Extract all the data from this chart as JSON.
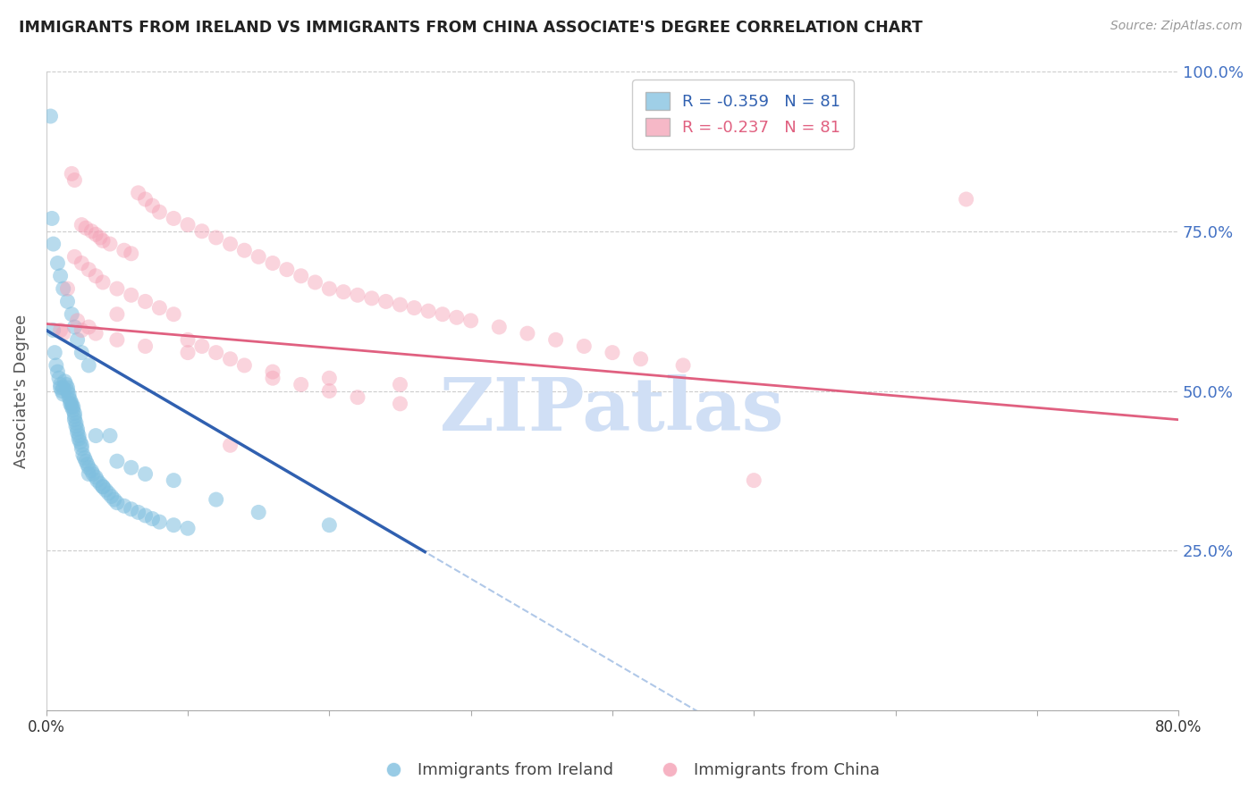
{
  "title": "IMMIGRANTS FROM IRELAND VS IMMIGRANTS FROM CHINA ASSOCIATE'S DEGREE CORRELATION CHART",
  "source": "Source: ZipAtlas.com",
  "ylabel": "Associate's Degree",
  "legend_label_blue": "Immigrants from Ireland",
  "legend_label_pink": "Immigrants from China",
  "R_blue": -0.359,
  "N_blue": 81,
  "R_pink": -0.237,
  "N_pink": 81,
  "xlim": [
    0.0,
    0.8
  ],
  "ylim": [
    0.0,
    1.0
  ],
  "color_blue": "#7fbfdf",
  "color_pink": "#f4a0b5",
  "color_blue_line": "#3060b0",
  "color_pink_line": "#e06080",
  "color_dashed": "#b0c8e8",
  "color_right_labels": "#4472c4",
  "watermark_text": "ZIPatlas",
  "watermark_color": "#d0dff5",
  "blue_line_x0": 0.0,
  "blue_line_y0": 0.595,
  "blue_line_x1": 0.27,
  "blue_line_y1": 0.245,
  "pink_line_x0": 0.0,
  "pink_line_y0": 0.605,
  "pink_line_x1": 0.8,
  "pink_line_y1": 0.455,
  "blue_scatter_x": [
    0.003,
    0.005,
    0.006,
    0.007,
    0.008,
    0.009,
    0.01,
    0.01,
    0.011,
    0.012,
    0.012,
    0.013,
    0.014,
    0.015,
    0.015,
    0.016,
    0.016,
    0.017,
    0.017,
    0.018,
    0.018,
    0.019,
    0.019,
    0.02,
    0.02,
    0.02,
    0.021,
    0.021,
    0.022,
    0.022,
    0.023,
    0.023,
    0.024,
    0.025,
    0.025,
    0.026,
    0.027,
    0.028,
    0.029,
    0.03,
    0.03,
    0.032,
    0.033,
    0.035,
    0.036,
    0.038,
    0.04,
    0.042,
    0.044,
    0.046,
    0.048,
    0.05,
    0.055,
    0.06,
    0.065,
    0.07,
    0.075,
    0.08,
    0.09,
    0.1,
    0.004,
    0.005,
    0.008,
    0.01,
    0.012,
    0.015,
    0.018,
    0.02,
    0.022,
    0.025,
    0.03,
    0.035,
    0.04,
    0.045,
    0.05,
    0.06,
    0.07,
    0.09,
    0.12,
    0.15,
    0.2
  ],
  "blue_scatter_y": [
    0.93,
    0.595,
    0.56,
    0.54,
    0.53,
    0.52,
    0.51,
    0.505,
    0.5,
    0.495,
    0.505,
    0.515,
    0.51,
    0.505,
    0.5,
    0.495,
    0.49,
    0.485,
    0.48,
    0.475,
    0.48,
    0.475,
    0.47,
    0.465,
    0.46,
    0.455,
    0.45,
    0.445,
    0.44,
    0.435,
    0.43,
    0.425,
    0.42,
    0.415,
    0.41,
    0.4,
    0.395,
    0.39,
    0.385,
    0.38,
    0.37,
    0.375,
    0.37,
    0.365,
    0.36,
    0.355,
    0.35,
    0.345,
    0.34,
    0.335,
    0.33,
    0.325,
    0.32,
    0.315,
    0.31,
    0.305,
    0.3,
    0.295,
    0.29,
    0.285,
    0.77,
    0.73,
    0.7,
    0.68,
    0.66,
    0.64,
    0.62,
    0.6,
    0.58,
    0.56,
    0.54,
    0.43,
    0.35,
    0.43,
    0.39,
    0.38,
    0.37,
    0.36,
    0.33,
    0.31,
    0.29
  ],
  "pink_scatter_x": [
    0.01,
    0.012,
    0.015,
    0.018,
    0.02,
    0.022,
    0.025,
    0.028,
    0.03,
    0.032,
    0.035,
    0.038,
    0.04,
    0.045,
    0.05,
    0.055,
    0.06,
    0.065,
    0.07,
    0.075,
    0.08,
    0.09,
    0.1,
    0.11,
    0.12,
    0.13,
    0.14,
    0.15,
    0.16,
    0.17,
    0.18,
    0.19,
    0.2,
    0.21,
    0.22,
    0.23,
    0.24,
    0.25,
    0.26,
    0.27,
    0.28,
    0.29,
    0.3,
    0.32,
    0.34,
    0.36,
    0.38,
    0.4,
    0.42,
    0.45,
    0.02,
    0.025,
    0.03,
    0.035,
    0.04,
    0.05,
    0.06,
    0.07,
    0.08,
    0.09,
    0.1,
    0.11,
    0.12,
    0.13,
    0.14,
    0.16,
    0.18,
    0.2,
    0.22,
    0.25,
    0.025,
    0.035,
    0.05,
    0.07,
    0.1,
    0.13,
    0.16,
    0.2,
    0.25,
    0.5,
    0.65
  ],
  "pink_scatter_y": [
    0.595,
    0.59,
    0.66,
    0.84,
    0.83,
    0.61,
    0.76,
    0.755,
    0.6,
    0.75,
    0.745,
    0.74,
    0.735,
    0.73,
    0.62,
    0.72,
    0.715,
    0.81,
    0.8,
    0.79,
    0.78,
    0.77,
    0.76,
    0.75,
    0.74,
    0.73,
    0.72,
    0.71,
    0.7,
    0.69,
    0.68,
    0.67,
    0.66,
    0.655,
    0.65,
    0.645,
    0.64,
    0.635,
    0.63,
    0.625,
    0.62,
    0.615,
    0.61,
    0.6,
    0.59,
    0.58,
    0.57,
    0.56,
    0.55,
    0.54,
    0.71,
    0.7,
    0.69,
    0.68,
    0.67,
    0.66,
    0.65,
    0.64,
    0.63,
    0.62,
    0.58,
    0.57,
    0.56,
    0.55,
    0.54,
    0.52,
    0.51,
    0.5,
    0.49,
    0.48,
    0.595,
    0.59,
    0.58,
    0.57,
    0.56,
    0.415,
    0.53,
    0.52,
    0.51,
    0.36,
    0.8
  ]
}
